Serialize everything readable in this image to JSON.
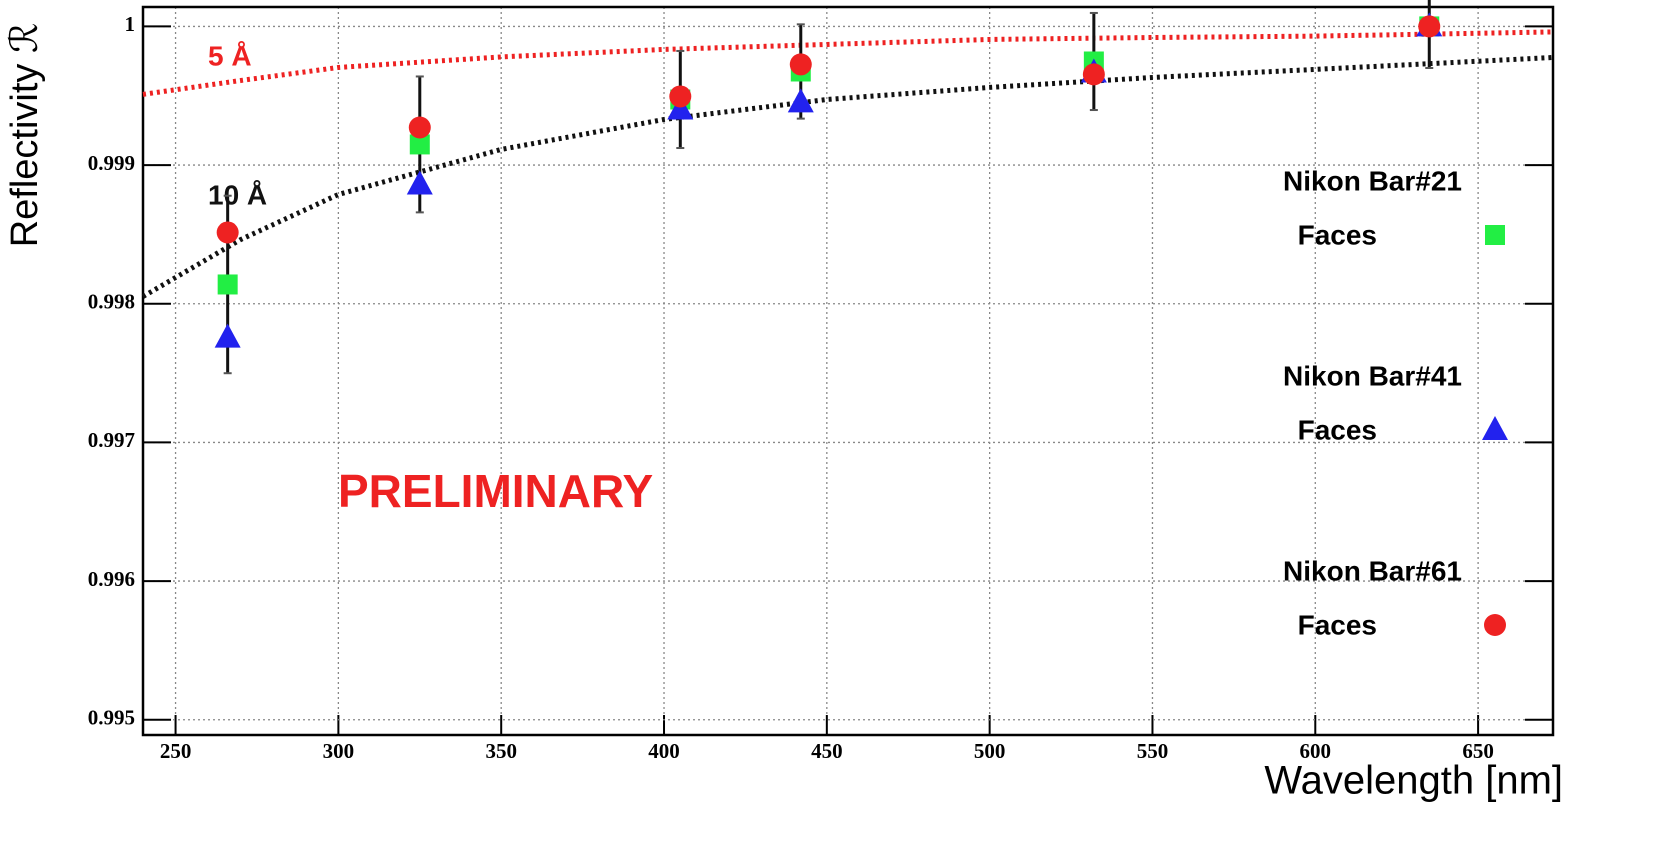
{
  "chart_data": {
    "type": "scatter",
    "x_label": "Wavelength [nm]",
    "y_label": "Reflectivity ℛ",
    "annotation": "PRELIMINARY",
    "xlim": [
      240,
      673
    ],
    "ylim": [
      0.99489,
      1.00014
    ],
    "xticks": [
      250,
      300,
      350,
      400,
      450,
      500,
      550,
      600,
      650
    ],
    "yticks": [
      0.995,
      0.996,
      0.997,
      0.998,
      0.999,
      1
    ],
    "grid": true,
    "series": [
      {
        "name": "5 Å",
        "marker": "line",
        "color": "#ee2222",
        "x": [
          240,
          270,
          300,
          350,
          400,
          450,
          500,
          550,
          600,
          673
        ],
        "values": [
          0.99951,
          0.99961,
          0.999704,
          0.99978,
          0.999834,
          0.99987,
          0.999906,
          0.99992,
          0.99993,
          0.99996
        ]
      },
      {
        "name": "10 Å",
        "marker": "line",
        "color": "#111111",
        "x": [
          240,
          270,
          300,
          350,
          400,
          450,
          500,
          550,
          600,
          673
        ],
        "values": [
          0.998052,
          0.998463,
          0.998788,
          0.999113,
          0.999329,
          0.999473,
          0.99956,
          0.999632,
          0.99969,
          0.999776
        ]
      },
      {
        "name": [
          "Nikon Bar#21",
          "Faces"
        ],
        "marker": "square",
        "color": "#22ee44",
        "x": [
          266,
          325,
          405,
          442,
          532,
          635
        ],
        "values": [
          0.998139,
          0.999149,
          0.999473,
          0.999675,
          0.999747,
          1
        ],
        "errors": [
          0.00064,
          0.00049,
          0.00035,
          0.00034,
          0.00035,
          0.0003
        ]
      },
      {
        "name": [
          "Nikon Bar#41",
          "Faces"
        ],
        "marker": "triangle",
        "color": "#2222ee",
        "x": [
          266,
          325,
          405,
          442,
          532,
          635
        ],
        "values": [
          0.997756,
          0.99886,
          0.999401,
          0.999452,
          0.999668,
          1
        ]
      },
      {
        "name": [
          "Nikon Bar#61",
          "Faces"
        ],
        "marker": "circle",
        "color": "#ee2222",
        "x": [
          266,
          325,
          405,
          442,
          532,
          635
        ],
        "values": [
          0.998514,
          0.999271,
          0.999495,
          0.999726,
          0.999654,
          1
        ]
      }
    ]
  }
}
